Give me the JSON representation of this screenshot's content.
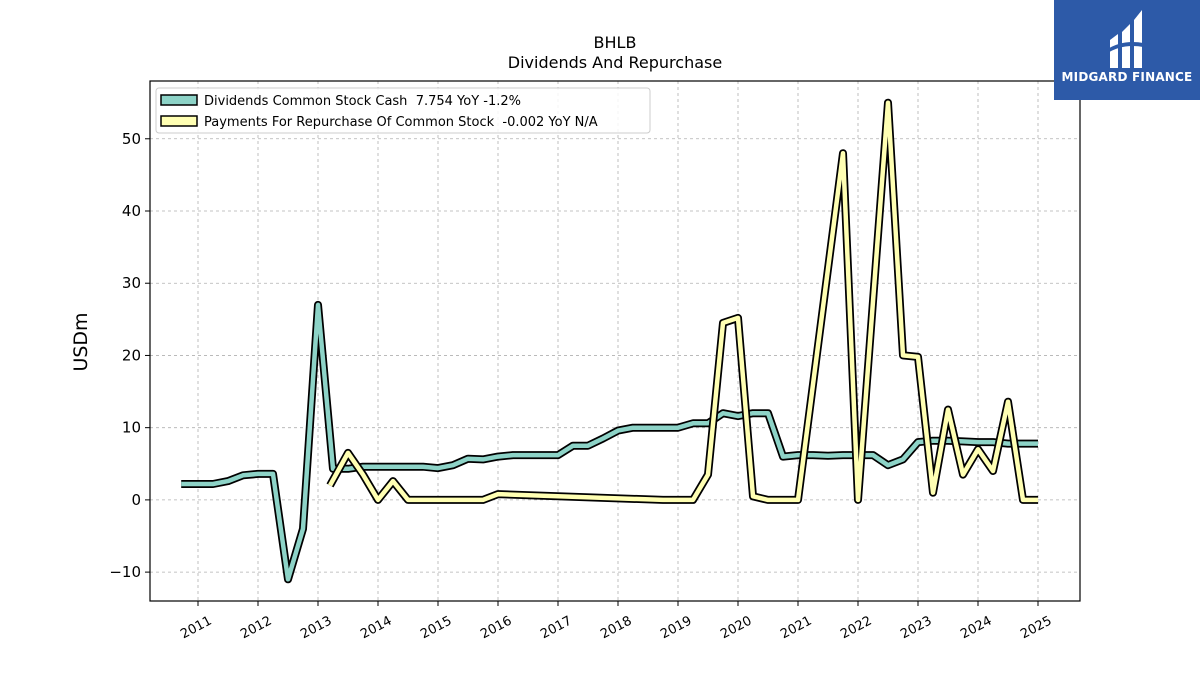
{
  "colors": {
    "dividends": "#8dd3c7",
    "repurchase": "#ffffb3",
    "outline": "#000000",
    "brand": "#2d5aa8"
  },
  "logo": {
    "text": "MIDGARD FINANCE"
  },
  "chart_data": {
    "type": "line",
    "title": "BHLB",
    "subtitle": "Dividends And Repurchase",
    "ylabel": "USDm",
    "xlabel": "",
    "ylim": [
      -14,
      58
    ],
    "xlim": [
      2010.2,
      2025.7
    ],
    "yticks": [
      -10,
      0,
      10,
      20,
      30,
      40,
      50
    ],
    "ytick_labels": [
      "−10",
      "0",
      "10",
      "20",
      "30",
      "40",
      "50"
    ],
    "xticks": [
      2011,
      2012,
      2013,
      2014,
      2015,
      2016,
      2017,
      2018,
      2019,
      2020,
      2021,
      2022,
      2023,
      2024,
      2025
    ],
    "xtick_labels": [
      "2011",
      "2012",
      "2013",
      "2014",
      "2015",
      "2016",
      "2017",
      "2018",
      "2019",
      "2020",
      "2021",
      "2022",
      "2023",
      "2024",
      "2025"
    ],
    "grid": true,
    "legend_position": "top-left",
    "series": [
      {
        "name": "Dividends Common Stock Cash  7.754 YoY -1.2%",
        "color": "#8dd3c7",
        "x": [
          2010.72,
          2011.0,
          2011.25,
          2011.5,
          2011.75,
          2012.0,
          2012.25,
          2012.5,
          2012.75,
          2013.0,
          2013.25,
          2013.5,
          2013.75,
          2014.0,
          2014.25,
          2014.5,
          2014.75,
          2015.0,
          2015.25,
          2015.5,
          2015.75,
          2016.0,
          2016.25,
          2016.5,
          2016.75,
          2017.0,
          2017.25,
          2017.5,
          2017.75,
          2018.0,
          2018.25,
          2018.5,
          2018.75,
          2019.0,
          2019.25,
          2019.5,
          2019.75,
          2020.0,
          2020.25,
          2020.5,
          2020.75,
          2021.0,
          2021.25,
          2021.5,
          2021.75,
          2022.0,
          2022.25,
          2022.5,
          2022.75,
          2023.0,
          2023.25,
          2023.5,
          2023.75,
          2024.0,
          2024.25,
          2024.5,
          2024.75,
          2025.0
        ],
        "y": [
          2.2,
          2.2,
          2.2,
          2.6,
          3.4,
          3.6,
          3.6,
          -11.0,
          -4.0,
          27.0,
          4.3,
          4.3,
          4.6,
          4.6,
          4.6,
          4.6,
          4.6,
          4.4,
          4.8,
          5.7,
          5.6,
          6.0,
          6.2,
          6.2,
          6.2,
          6.2,
          7.5,
          7.5,
          8.5,
          9.6,
          10.0,
          10.0,
          10.0,
          10.0,
          10.6,
          10.6,
          12.0,
          11.6,
          12.0,
          12.0,
          6.0,
          6.2,
          6.2,
          6.1,
          6.2,
          6.2,
          6.2,
          4.8,
          5.6,
          8.0,
          8.2,
          8.2,
          8.1,
          8.0,
          8.0,
          7.8,
          7.8,
          7.8
        ]
      },
      {
        "name": "Payments For Repurchase Of Common Stock  -0.002 YoY N/A",
        "color": "#ffffb3",
        "x": [
          2013.2,
          2013.5,
          2013.75,
          2014.0,
          2014.25,
          2014.5,
          2014.75,
          2015.0,
          2015.25,
          2015.5,
          2015.75,
          2016.0,
          2018.75,
          2019.0,
          2019.25,
          2019.5,
          2019.75,
          2020.0,
          2020.25,
          2020.5,
          2020.75,
          2021.0,
          2021.75,
          2022.0,
          2022.5,
          2022.75,
          2023.0,
          2023.25,
          2023.5,
          2023.75,
          2024.0,
          2024.25,
          2024.5,
          2024.75,
          2025.0
        ],
        "y": [
          2.0,
          6.5,
          3.5,
          0.0,
          2.6,
          0.0,
          0.0,
          0.0,
          0.0,
          0.0,
          0.0,
          0.8,
          0.0,
          0.0,
          0.0,
          3.5,
          24.5,
          25.2,
          0.5,
          0.0,
          0.0,
          0.0,
          48.0,
          0.0,
          55.0,
          20.0,
          19.8,
          1.0,
          12.5,
          3.5,
          7.0,
          4.0,
          13.6,
          0.0,
          0.0
        ]
      }
    ]
  }
}
